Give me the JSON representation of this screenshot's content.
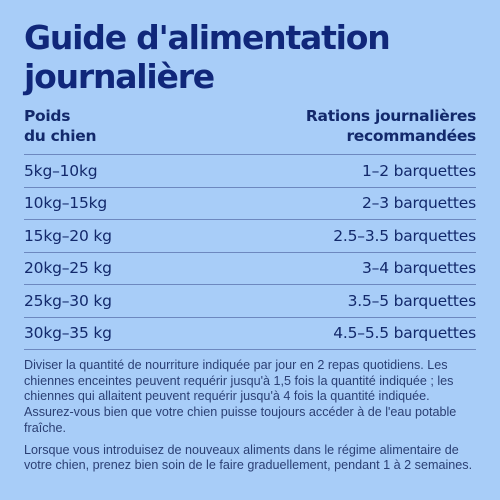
{
  "title": {
    "line1": "Guide d'alimentation",
    "line2": "journalière"
  },
  "columns": {
    "left": [
      "Poids",
      "du chien"
    ],
    "right": [
      "Rations journalières",
      "recommandées"
    ]
  },
  "rows": [
    {
      "weight": "5kg–10kg",
      "ration": "1–2 barquettes"
    },
    {
      "weight": "10kg–15kg",
      "ration": "2–3 barquettes"
    },
    {
      "weight": "15kg–20 kg",
      "ration": "2.5–3.5 barquettes"
    },
    {
      "weight": "20kg–25 kg",
      "ration": "3–4 barquettes"
    },
    {
      "weight": "25kg–30 kg",
      "ration": "3.5–5 barquettes"
    },
    {
      "weight": "30kg–35 kg",
      "ration": "4.5–5.5 barquettes"
    }
  ],
  "notes": [
    "Diviser la quantité de nourriture indiquée par jour en 2 repas quotidiens. Les chiennes enceintes peuvent requérir jusqu'à 1,5 fois la quantité indiquée ; les chiennes qui allaitent peuvent requérir jusqu'à 4 fois la quantité indiquée. Assurez-vous bien que votre chien puisse toujours accéder à de l'eau potable fraîche.",
    "Lorsque vous introduisez de nouveaux aliments dans le régime alimentaire de votre chien, prenez bien soin de le faire graduellement, pendant 1 à 2 semaines."
  ],
  "colors": {
    "background": "#a8cdf8",
    "title": "#10277a",
    "text": "#13296b"
  }
}
